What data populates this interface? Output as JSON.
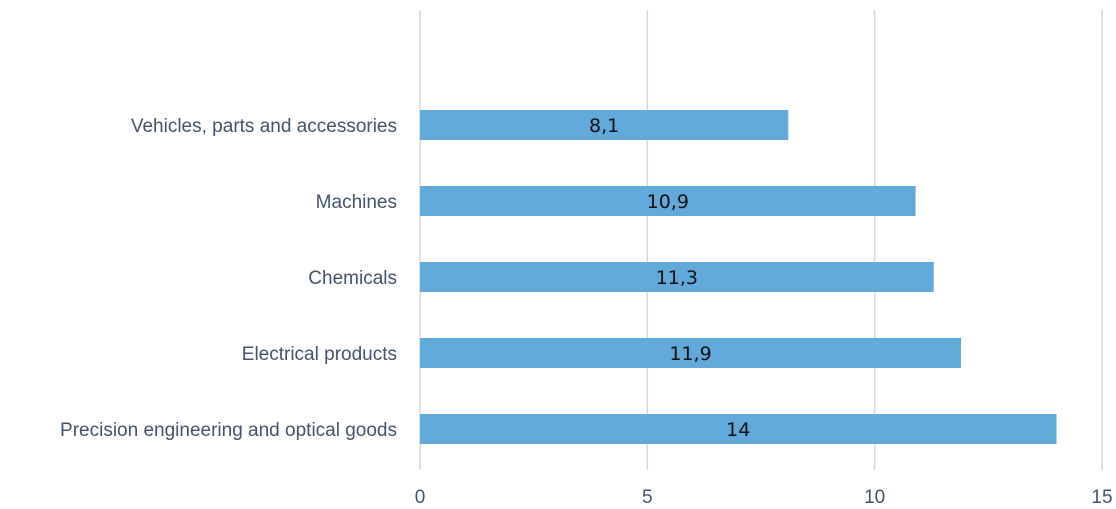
{
  "chart_data": {
    "type": "bar",
    "orientation": "horizontal",
    "categories": [
      "Vehicles, parts and accessories",
      "Machines",
      "Chemicals",
      "Electrical products",
      "Precision engineering and optical goods"
    ],
    "values": [
      8.1,
      10.9,
      11.3,
      11.9,
      14
    ],
    "value_labels": [
      "8,1",
      "10,9",
      "11,3",
      "11,9",
      "14"
    ],
    "xlim": [
      0,
      15
    ],
    "xticks": [
      0,
      5,
      10,
      15
    ],
    "xtick_labels": [
      "0",
      "5",
      "10",
      "15"
    ],
    "grid": true,
    "legend": "none",
    "bar_color": "#62a9d9",
    "grid_color": "#d9d9d9"
  }
}
